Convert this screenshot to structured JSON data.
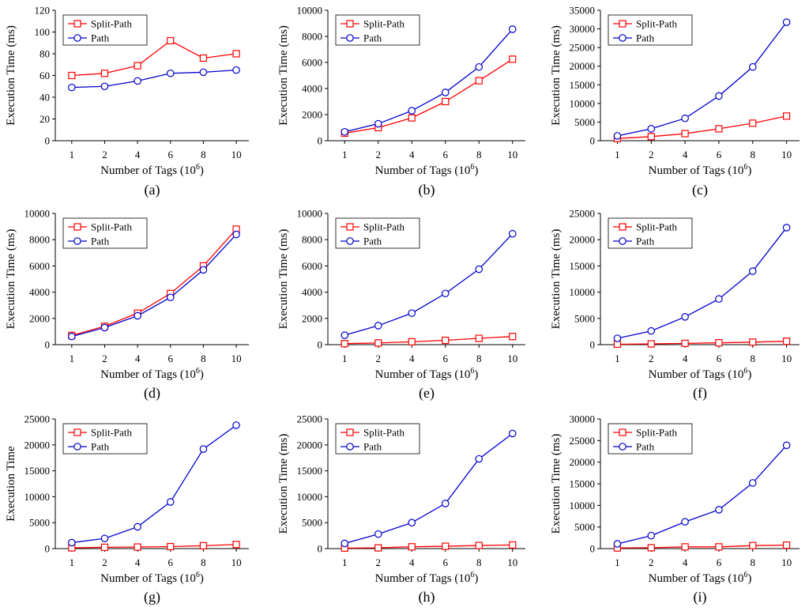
{
  "chart_data": [
    {
      "panel": "a",
      "type": "line",
      "caption": "(a)",
      "xlabel": "Number of Tags (10",
      "xlabel_exp": "6",
      "xlabel_close": ")",
      "ylabel": "Execution Time  (ms)",
      "categories": [
        "1",
        "2",
        "4",
        "6",
        "8",
        "10"
      ],
      "ylim": [
        0,
        120
      ],
      "yticks": [
        "0",
        "20",
        "40",
        "60",
        "80",
        "100",
        "120"
      ],
      "series": [
        {
          "name": "Split-Path",
          "color": "#ff0000",
          "marker": "square",
          "values": [
            60,
            62,
            69,
            92,
            76,
            80
          ]
        },
        {
          "name": "Path",
          "color": "#0000cc",
          "marker": "circle",
          "values": [
            49,
            50,
            55,
            62,
            63,
            65
          ]
        }
      ]
    },
    {
      "panel": "b",
      "type": "line",
      "caption": "(b)",
      "xlabel": "Number of Tags (10",
      "xlabel_exp": "6",
      "xlabel_close": ")",
      "ylabel": "Execution Time  (ms)",
      "categories": [
        "1",
        "2",
        "4",
        "6",
        "8",
        "10"
      ],
      "ylim": [
        0,
        10000
      ],
      "yticks": [
        "0",
        "2000",
        "4000",
        "6000",
        "8000",
        "10000"
      ],
      "series": [
        {
          "name": "Split-Path",
          "color": "#ff0000",
          "marker": "square",
          "values": [
            580,
            1000,
            1750,
            3000,
            4600,
            6250
          ]
        },
        {
          "name": "Path",
          "color": "#0000cc",
          "marker": "circle",
          "values": [
            680,
            1300,
            2300,
            3700,
            5650,
            8550
          ]
        }
      ]
    },
    {
      "panel": "c",
      "type": "line",
      "caption": "(c)",
      "xlabel": "Number of Tags (10",
      "xlabel_exp": "6",
      "xlabel_close": ")",
      "ylabel": "Execution Time  (ms)",
      "categories": [
        "1",
        "2",
        "4",
        "6",
        "8",
        "10"
      ],
      "ylim": [
        0,
        35000
      ],
      "yticks": [
        "0",
        "5000",
        "10000",
        "15000",
        "20000",
        "25000",
        "30000",
        "35000"
      ],
      "series": [
        {
          "name": "Split-Path",
          "color": "#ff0000",
          "marker": "square",
          "values": [
            600,
            1100,
            1900,
            3200,
            4700,
            6600
          ]
        },
        {
          "name": "Path",
          "color": "#0000cc",
          "marker": "circle",
          "values": [
            1300,
            3200,
            6000,
            12000,
            19800,
            31800
          ]
        }
      ]
    },
    {
      "panel": "d",
      "type": "line",
      "caption": "(d)",
      "xlabel": "Number of Tags (10",
      "xlabel_exp": "6",
      "xlabel_close": ")",
      "ylabel": "Execution Time  (ms)",
      "categories": [
        "1",
        "2",
        "4",
        "6",
        "8",
        "10"
      ],
      "ylim": [
        0,
        10000
      ],
      "yticks": [
        "0",
        "2000",
        "4000",
        "6000",
        "8000",
        "10000"
      ],
      "series": [
        {
          "name": "Split-Path",
          "color": "#ff0000",
          "marker": "square",
          "values": [
            700,
            1400,
            2400,
            3900,
            6000,
            8800
          ]
        },
        {
          "name": "Path",
          "color": "#0000cc",
          "marker": "circle",
          "values": [
            620,
            1300,
            2200,
            3600,
            5700,
            8400
          ]
        }
      ]
    },
    {
      "panel": "e",
      "type": "line",
      "caption": "(e)",
      "xlabel": "Number of Tags (10",
      "xlabel_exp": "6",
      "xlabel_close": ")",
      "ylabel": "Execution Time  (ms)",
      "categories": [
        "1",
        "2",
        "4",
        "6",
        "8",
        "10"
      ],
      "ylim": [
        0,
        10000
      ],
      "yticks": [
        "0",
        "2000",
        "4000",
        "6000",
        "8000",
        "10000"
      ],
      "series": [
        {
          "name": "Split-Path",
          "color": "#ff0000",
          "marker": "square",
          "values": [
            80,
            130,
            220,
            330,
            480,
            620
          ]
        },
        {
          "name": "Path",
          "color": "#0000cc",
          "marker": "circle",
          "values": [
            720,
            1450,
            2400,
            3900,
            5750,
            8450
          ]
        }
      ]
    },
    {
      "panel": "f",
      "type": "line",
      "caption": "(f)",
      "xlabel": "Number of Tags (10",
      "xlabel_exp": "6",
      "xlabel_close": ")",
      "ylabel": "Execution Time  (ms)",
      "categories": [
        "1",
        "2",
        "4",
        "6",
        "8",
        "10"
      ],
      "ylim": [
        0,
        25000
      ],
      "yticks": [
        "0",
        "5000",
        "10000",
        "15000",
        "20000",
        "25000"
      ],
      "series": [
        {
          "name": "Split-Path",
          "color": "#ff0000",
          "marker": "square",
          "values": [
            80,
            150,
            250,
            350,
            480,
            650
          ]
        },
        {
          "name": "Path",
          "color": "#0000cc",
          "marker": "circle",
          "values": [
            1200,
            2600,
            5300,
            8700,
            14000,
            22300
          ]
        }
      ]
    },
    {
      "panel": "g",
      "type": "line",
      "caption": "(g)",
      "xlabel": "Number of Tags (10",
      "xlabel_exp": "6",
      "xlabel_close": ")",
      "ylabel": "Execution Time",
      "categories": [
        "1",
        "2",
        "4",
        "6",
        "8",
        "10"
      ],
      "ylim": [
        0,
        25000
      ],
      "yticks": [
        "0",
        "5000",
        "10000",
        "15000",
        "20000",
        "25000"
      ],
      "series": [
        {
          "name": "Split-Path",
          "color": "#ff0000",
          "marker": "square",
          "values": [
            150,
            250,
            300,
            380,
            550,
            800
          ]
        },
        {
          "name": "Path",
          "color": "#0000cc",
          "marker": "circle",
          "values": [
            1150,
            1950,
            4200,
            9000,
            19200,
            23800
          ]
        }
      ]
    },
    {
      "panel": "h",
      "type": "line",
      "caption": "(h)",
      "xlabel": "Number of Tags (10",
      "xlabel_exp": "6",
      "xlabel_close": ")",
      "ylabel": "Execution Time  (ms)",
      "categories": [
        "1",
        "2",
        "4",
        "6",
        "8",
        "10"
      ],
      "ylim": [
        0,
        25000
      ],
      "yticks": [
        "0",
        "5000",
        "10000",
        "15000",
        "20000",
        "25000"
      ],
      "series": [
        {
          "name": "Split-Path",
          "color": "#ff0000",
          "marker": "square",
          "values": [
            100,
            150,
            350,
            450,
            600,
            700
          ]
        },
        {
          "name": "Path",
          "color": "#0000cc",
          "marker": "circle",
          "values": [
            1000,
            2800,
            5000,
            8700,
            17300,
            22200
          ]
        }
      ]
    },
    {
      "panel": "i",
      "type": "line",
      "caption": "(i)",
      "xlabel": "Number of Tags (10",
      "xlabel_exp": "6",
      "xlabel_close": ")",
      "ylabel": "Execution Time  (ms)",
      "categories": [
        "1",
        "2",
        "4",
        "6",
        "8",
        "10"
      ],
      "ylim": [
        0,
        30000
      ],
      "yticks": [
        "0",
        "5000",
        "10000",
        "15000",
        "20000",
        "25000",
        "30000"
      ],
      "series": [
        {
          "name": "Split-Path",
          "color": "#ff0000",
          "marker": "square",
          "values": [
            150,
            200,
            400,
            400,
            700,
            800
          ]
        },
        {
          "name": "Path",
          "color": "#0000cc",
          "marker": "circle",
          "values": [
            1100,
            3000,
            6200,
            9000,
            15200,
            23900
          ]
        }
      ]
    }
  ]
}
